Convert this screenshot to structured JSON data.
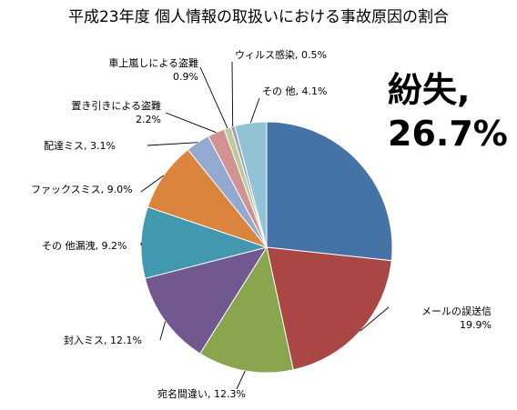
{
  "chart_data": {
    "type": "pie",
    "title": "平成23年度  個人情報の取扱いにおける事故原因の割合",
    "categories": [
      "紛失",
      "メールの誤送信",
      "宛名間違い",
      "封入ミス",
      "その 他漏洩",
      "ファックスミス",
      "配達ミス",
      "置き引きによる盗難",
      "車上嵐しによる盗難",
      "ウィルス感染",
      "その 他"
    ],
    "values": [
      26.7,
      19.9,
      12.3,
      12.1,
      9.2,
      9.0,
      3.1,
      2.2,
      0.9,
      0.5,
      4.1
    ],
    "value_labels": [
      "26.7%",
      "19.9%",
      "12.3%",
      "12.1%",
      "9.2%",
      "9.0%",
      "3.1%",
      "2.2%",
      "0.9%",
      "0.5%",
      "4.1%"
    ],
    "colors": [
      "#4572A7",
      "#AA4643",
      "#89A54E",
      "#71588F",
      "#4198AF",
      "#DB843D",
      "#93A9CF",
      "#D19392",
      "#B9CD96",
      "#A99BBD",
      "#92C3D4"
    ],
    "legend": "none"
  }
}
